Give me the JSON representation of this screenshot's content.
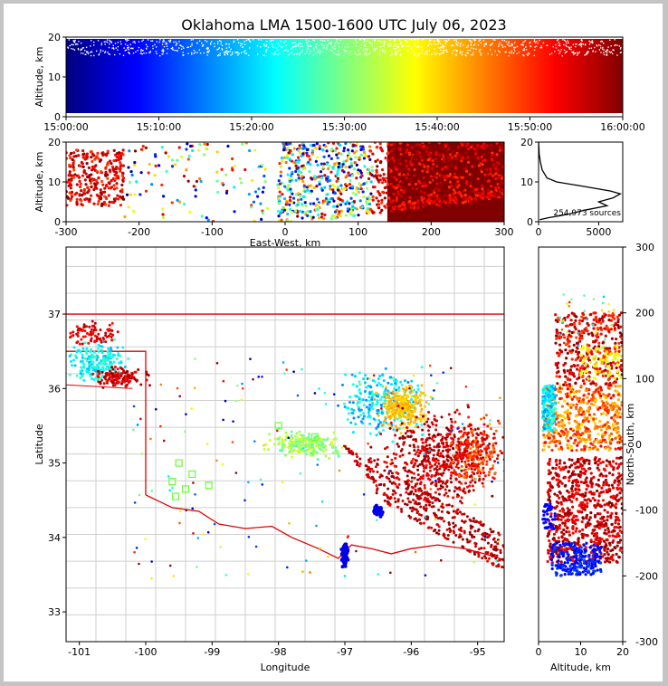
{
  "chart_data": [
    {
      "type": "scatter",
      "title": "Oklahoma LMA 1500-1600 UTC July 06, 2023",
      "xlabel": "",
      "ylabel": "Altitude, km",
      "xticks": [
        "15:00:00",
        "15:10:00",
        "15:20:00",
        "15:30:00",
        "15:40:00",
        "15:50:00",
        "16:00:00"
      ],
      "xlim": [
        "15:00:00",
        "16:00:00"
      ],
      "ylim": [
        0,
        20
      ],
      "yticks": [
        "0",
        "10",
        "20"
      ],
      "colormap": "jet by time"
    },
    {
      "type": "scatter",
      "xlabel": "East-West, km",
      "ylabel": "Altitude, km",
      "xlim": [
        -300,
        300
      ],
      "ylim": [
        0,
        20
      ],
      "xticks": [
        "-300",
        "-200",
        "-100",
        "0",
        "100",
        "200",
        "300"
      ],
      "yticks": [
        "0",
        "10",
        "20"
      ]
    },
    {
      "type": "line",
      "ylim": [
        0,
        20
      ],
      "xlim": [
        0,
        7000
      ],
      "xticks": [
        "0",
        "5000"
      ],
      "yticks": [
        "0",
        "10",
        "20"
      ],
      "annotation": "254,973 sources",
      "profile": [
        [
          100,
          0.5
        ],
        [
          800,
          1.0
        ],
        [
          1800,
          1.5
        ],
        [
          2600,
          2
        ],
        [
          4000,
          3
        ],
        [
          5700,
          4
        ],
        [
          5000,
          5
        ],
        [
          6200,
          6
        ],
        [
          6800,
          7
        ],
        [
          6000,
          7.7
        ],
        [
          3500,
          9
        ],
        [
          1500,
          10
        ],
        [
          700,
          11
        ],
        [
          300,
          13
        ],
        [
          150,
          15
        ],
        [
          50,
          17
        ],
        [
          10,
          20
        ]
      ]
    },
    {
      "type": "scatter",
      "xlabel": "Longitude",
      "ylabel": "Latitude",
      "xlim": [
        -101.2,
        -94.6
      ],
      "ylim": [
        32.6,
        37.9
      ],
      "xticks": [
        "-101",
        "-100",
        "-99",
        "-98",
        "-97",
        "-96",
        "-95"
      ],
      "yticks": [
        "33",
        "34",
        "35",
        "36",
        "37"
      ]
    },
    {
      "type": "scatter",
      "xlabel": "Altitude, km",
      "ylabel": "North-South, km",
      "xlim": [
        0,
        20
      ],
      "ylim": [
        -300,
        300
      ],
      "xticks": [
        "0",
        "10",
        "20"
      ],
      "yticks": [
        "-300",
        "-200",
        "-100",
        "0",
        "100",
        "200",
        "300"
      ]
    }
  ]
}
